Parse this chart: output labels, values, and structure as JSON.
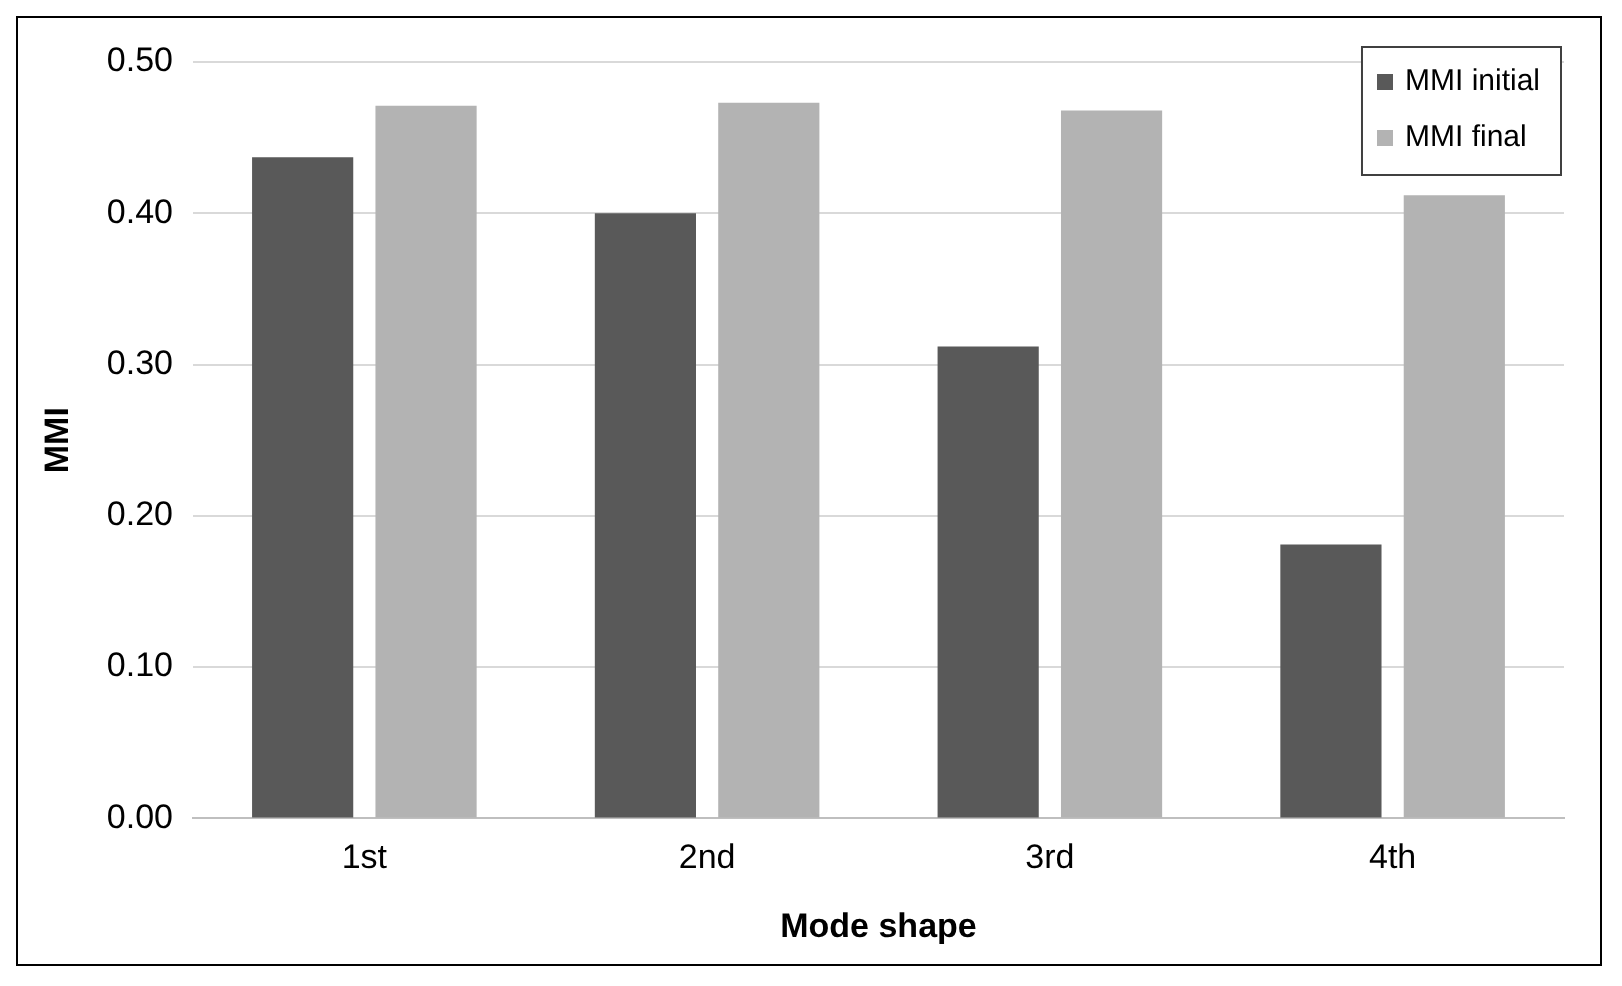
{
  "chart_data": {
    "type": "bar",
    "xlabel": "Mode shape",
    "ylabel": "MMI",
    "categories": [
      "1st",
      "2nd",
      "3rd",
      "4th"
    ],
    "series": [
      {
        "name": "MMI initial",
        "color": "#595959",
        "values": [
          0.437,
          0.4,
          0.312,
          0.181
        ]
      },
      {
        "name": "MMI final",
        "color": "#b3b3b3",
        "values": [
          0.471,
          0.473,
          0.468,
          0.412
        ]
      }
    ],
    "ylim": [
      0,
      0.5
    ],
    "yticks": [
      {
        "value": 0,
        "label": "0.00"
      },
      {
        "value": 0.1,
        "label": "0.10"
      },
      {
        "value": 0.2,
        "label": "0.20"
      },
      {
        "value": 0.3,
        "label": "0.30"
      },
      {
        "value": 0.4,
        "label": "0.40"
      },
      {
        "value": 0.5,
        "label": "0.50"
      }
    ],
    "grid": "y",
    "legend": "top right"
  }
}
